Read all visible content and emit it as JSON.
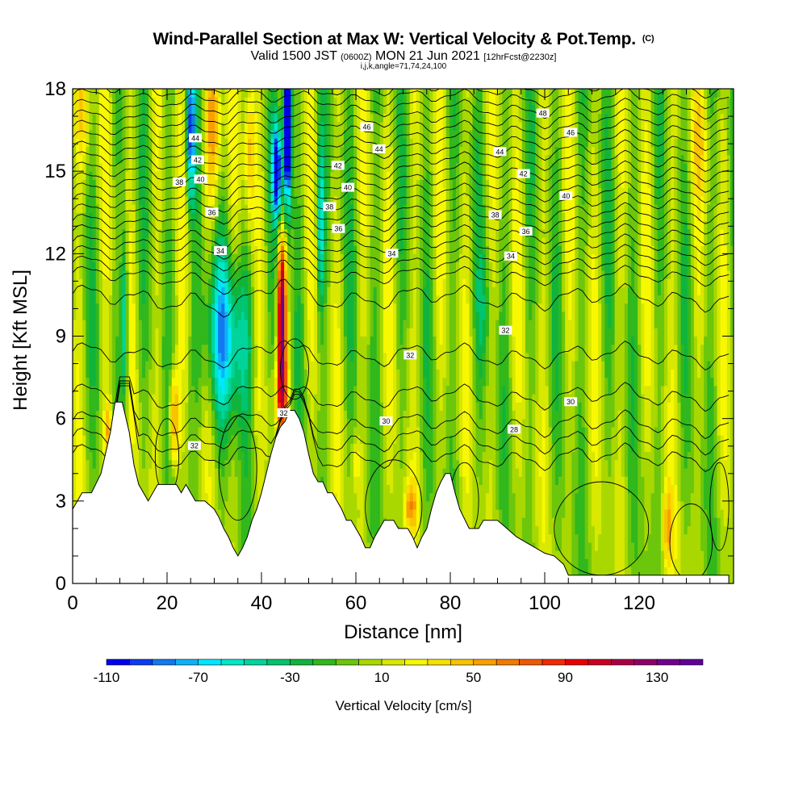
{
  "header": {
    "title": "Wind-Parallel Section at Max W: Vertical Velocity & Pot.Temp.",
    "copyright": "(C)",
    "valid_prefix": "Valid 1500 JST",
    "valid_utc": "(0600Z)",
    "valid_date": "MON 21 Jun 2021",
    "forecast_tag": "[12hrFcst@2230z]",
    "indices": "i,j,k,angle=71,74,24,100"
  },
  "chart_data": {
    "type": "heatmap",
    "xlabel": "Distance [nm]",
    "ylabel": "Height [Kft MSL]",
    "xlim": [
      0,
      140
    ],
    "ylim": [
      0,
      18
    ],
    "x_ticks": [
      0,
      20,
      40,
      60,
      80,
      100,
      120
    ],
    "y_ticks": [
      0,
      3,
      6,
      9,
      12,
      15,
      18
    ],
    "colorbar": {
      "label": "Vertical Velocity [cm/s]",
      "min": -110,
      "max": 150,
      "step": 10,
      "tick_values": [
        -110,
        -70,
        -30,
        10,
        50,
        90,
        130
      ],
      "tick_labels": [
        "-110",
        "-70",
        "-30",
        "10",
        "50",
        "90",
        "130"
      ],
      "colors": [
        "#0000ee",
        "#0a3cf0",
        "#1478f0",
        "#10b0f8",
        "#00e8ff",
        "#00e8c8",
        "#00d49c",
        "#00c46e",
        "#10b43c",
        "#30b81c",
        "#6cc60c",
        "#a8d800",
        "#d8e800",
        "#f8f800",
        "#f8e000",
        "#f8c400",
        "#f8a000",
        "#f07c00",
        "#f05800",
        "#f02c00",
        "#e80000",
        "#c80024",
        "#a80048",
        "#8c0068",
        "#70008c",
        "#600098"
      ]
    },
    "contour_variable": "Potential Temperature",
    "contour_labels": [
      {
        "x": 26,
        "y": 16.2,
        "text": "44"
      },
      {
        "x": 26.5,
        "y": 15.4,
        "text": "42"
      },
      {
        "x": 22.6,
        "y": 14.6,
        "text": "38"
      },
      {
        "x": 27.1,
        "y": 14.7,
        "text": "40"
      },
      {
        "x": 29.5,
        "y": 13.5,
        "text": "36"
      },
      {
        "x": 31.3,
        "y": 12.1,
        "text": "34"
      },
      {
        "x": 62.3,
        "y": 16.6,
        "text": "46"
      },
      {
        "x": 64.9,
        "y": 15.8,
        "text": "44"
      },
      {
        "x": 56.2,
        "y": 15.2,
        "text": "42"
      },
      {
        "x": 58.3,
        "y": 14.4,
        "text": "40"
      },
      {
        "x": 54.4,
        "y": 13.7,
        "text": "38"
      },
      {
        "x": 56.3,
        "y": 12.9,
        "text": "36"
      },
      {
        "x": 67.6,
        "y": 12.0,
        "text": "34"
      },
      {
        "x": 99.6,
        "y": 17.1,
        "text": "48"
      },
      {
        "x": 105.5,
        "y": 16.4,
        "text": "46"
      },
      {
        "x": 90.5,
        "y": 15.7,
        "text": "44"
      },
      {
        "x": 95.5,
        "y": 14.9,
        "text": "42"
      },
      {
        "x": 104.5,
        "y": 14.1,
        "text": "40"
      },
      {
        "x": 89.5,
        "y": 13.4,
        "text": "38"
      },
      {
        "x": 96.0,
        "y": 12.8,
        "text": "36"
      },
      {
        "x": 92.8,
        "y": 11.9,
        "text": "34"
      },
      {
        "x": 91.7,
        "y": 9.2,
        "text": "32"
      },
      {
        "x": 71.5,
        "y": 8.3,
        "text": "32"
      },
      {
        "x": 66.4,
        "y": 5.9,
        "text": "30"
      },
      {
        "x": 105.5,
        "y": 6.6,
        "text": "30"
      },
      {
        "x": 93.5,
        "y": 5.6,
        "text": "28"
      },
      {
        "x": 44.7,
        "y": 6.2,
        "text": "32"
      },
      {
        "x": 25.8,
        "y": 5.0,
        "text": "32"
      }
    ],
    "terrain_profile": [
      [
        0,
        2.7
      ],
      [
        2,
        3.3
      ],
      [
        4,
        3.3
      ],
      [
        6,
        4
      ],
      [
        8,
        5.5
      ],
      [
        9,
        6.6
      ],
      [
        10.5,
        6.6
      ],
      [
        12,
        5.5
      ],
      [
        13,
        4.3
      ],
      [
        14,
        3.6
      ],
      [
        15,
        3.3
      ],
      [
        16,
        3
      ],
      [
        18,
        3.6
      ],
      [
        20,
        3.6
      ],
      [
        22,
        3.6
      ],
      [
        23,
        3.3
      ],
      [
        24,
        3.6
      ],
      [
        25,
        3.3
      ],
      [
        26,
        3
      ],
      [
        28,
        3
      ],
      [
        30,
        2.7
      ],
      [
        31,
        2.4
      ],
      [
        32,
        2
      ],
      [
        33,
        1.7
      ],
      [
        34,
        1.3
      ],
      [
        35,
        1
      ],
      [
        36,
        1.3
      ],
      [
        37,
        1.7
      ],
      [
        38,
        2.3
      ],
      [
        39,
        2.7
      ],
      [
        40,
        3.3
      ],
      [
        41,
        4
      ],
      [
        42,
        4.7
      ],
      [
        43,
        5.3
      ],
      [
        44,
        5.7
      ],
      [
        45,
        5.9
      ],
      [
        46,
        6.3
      ],
      [
        47,
        6.3
      ],
      [
        48,
        6
      ],
      [
        49,
        5.5
      ],
      [
        50,
        4.7
      ],
      [
        51,
        4
      ],
      [
        52,
        3.7
      ],
      [
        53,
        3.7
      ],
      [
        54,
        3.3
      ],
      [
        55,
        3.3
      ],
      [
        56,
        3
      ],
      [
        57,
        2.7
      ],
      [
        58,
        2.3
      ],
      [
        59,
        2.3
      ],
      [
        60,
        2
      ],
      [
        61,
        1.7
      ],
      [
        62,
        1.3
      ],
      [
        63,
        1.3
      ],
      [
        64,
        1.7
      ],
      [
        65,
        2
      ],
      [
        66,
        2.3
      ],
      [
        68,
        2.3
      ],
      [
        69,
        2
      ],
      [
        70,
        2
      ],
      [
        71,
        2
      ],
      [
        72,
        1.7
      ],
      [
        73,
        1.3
      ],
      [
        74,
        1.7
      ],
      [
        75,
        2
      ],
      [
        76,
        2.7
      ],
      [
        77,
        3.3
      ],
      [
        78,
        3.7
      ],
      [
        79,
        4
      ],
      [
        80,
        4
      ],
      [
        81,
        3.3
      ],
      [
        82,
        2.7
      ],
      [
        84,
        2
      ],
      [
        86,
        2
      ],
      [
        87,
        2.3
      ],
      [
        88,
        2.3
      ],
      [
        90,
        2.3
      ],
      [
        92,
        2
      ],
      [
        94,
        1.7
      ],
      [
        96,
        1.5
      ],
      [
        98,
        1.3
      ],
      [
        100,
        1.1
      ],
      [
        102,
        1
      ],
      [
        104,
        0.7
      ],
      [
        105,
        0.3
      ],
      [
        110,
        0.3
      ],
      [
        115,
        0.3
      ],
      [
        120,
        0.3
      ],
      [
        125,
        0.3
      ],
      [
        130,
        0.3
      ],
      [
        135,
        0.3
      ],
      [
        139,
        0.3
      ]
    ]
  }
}
